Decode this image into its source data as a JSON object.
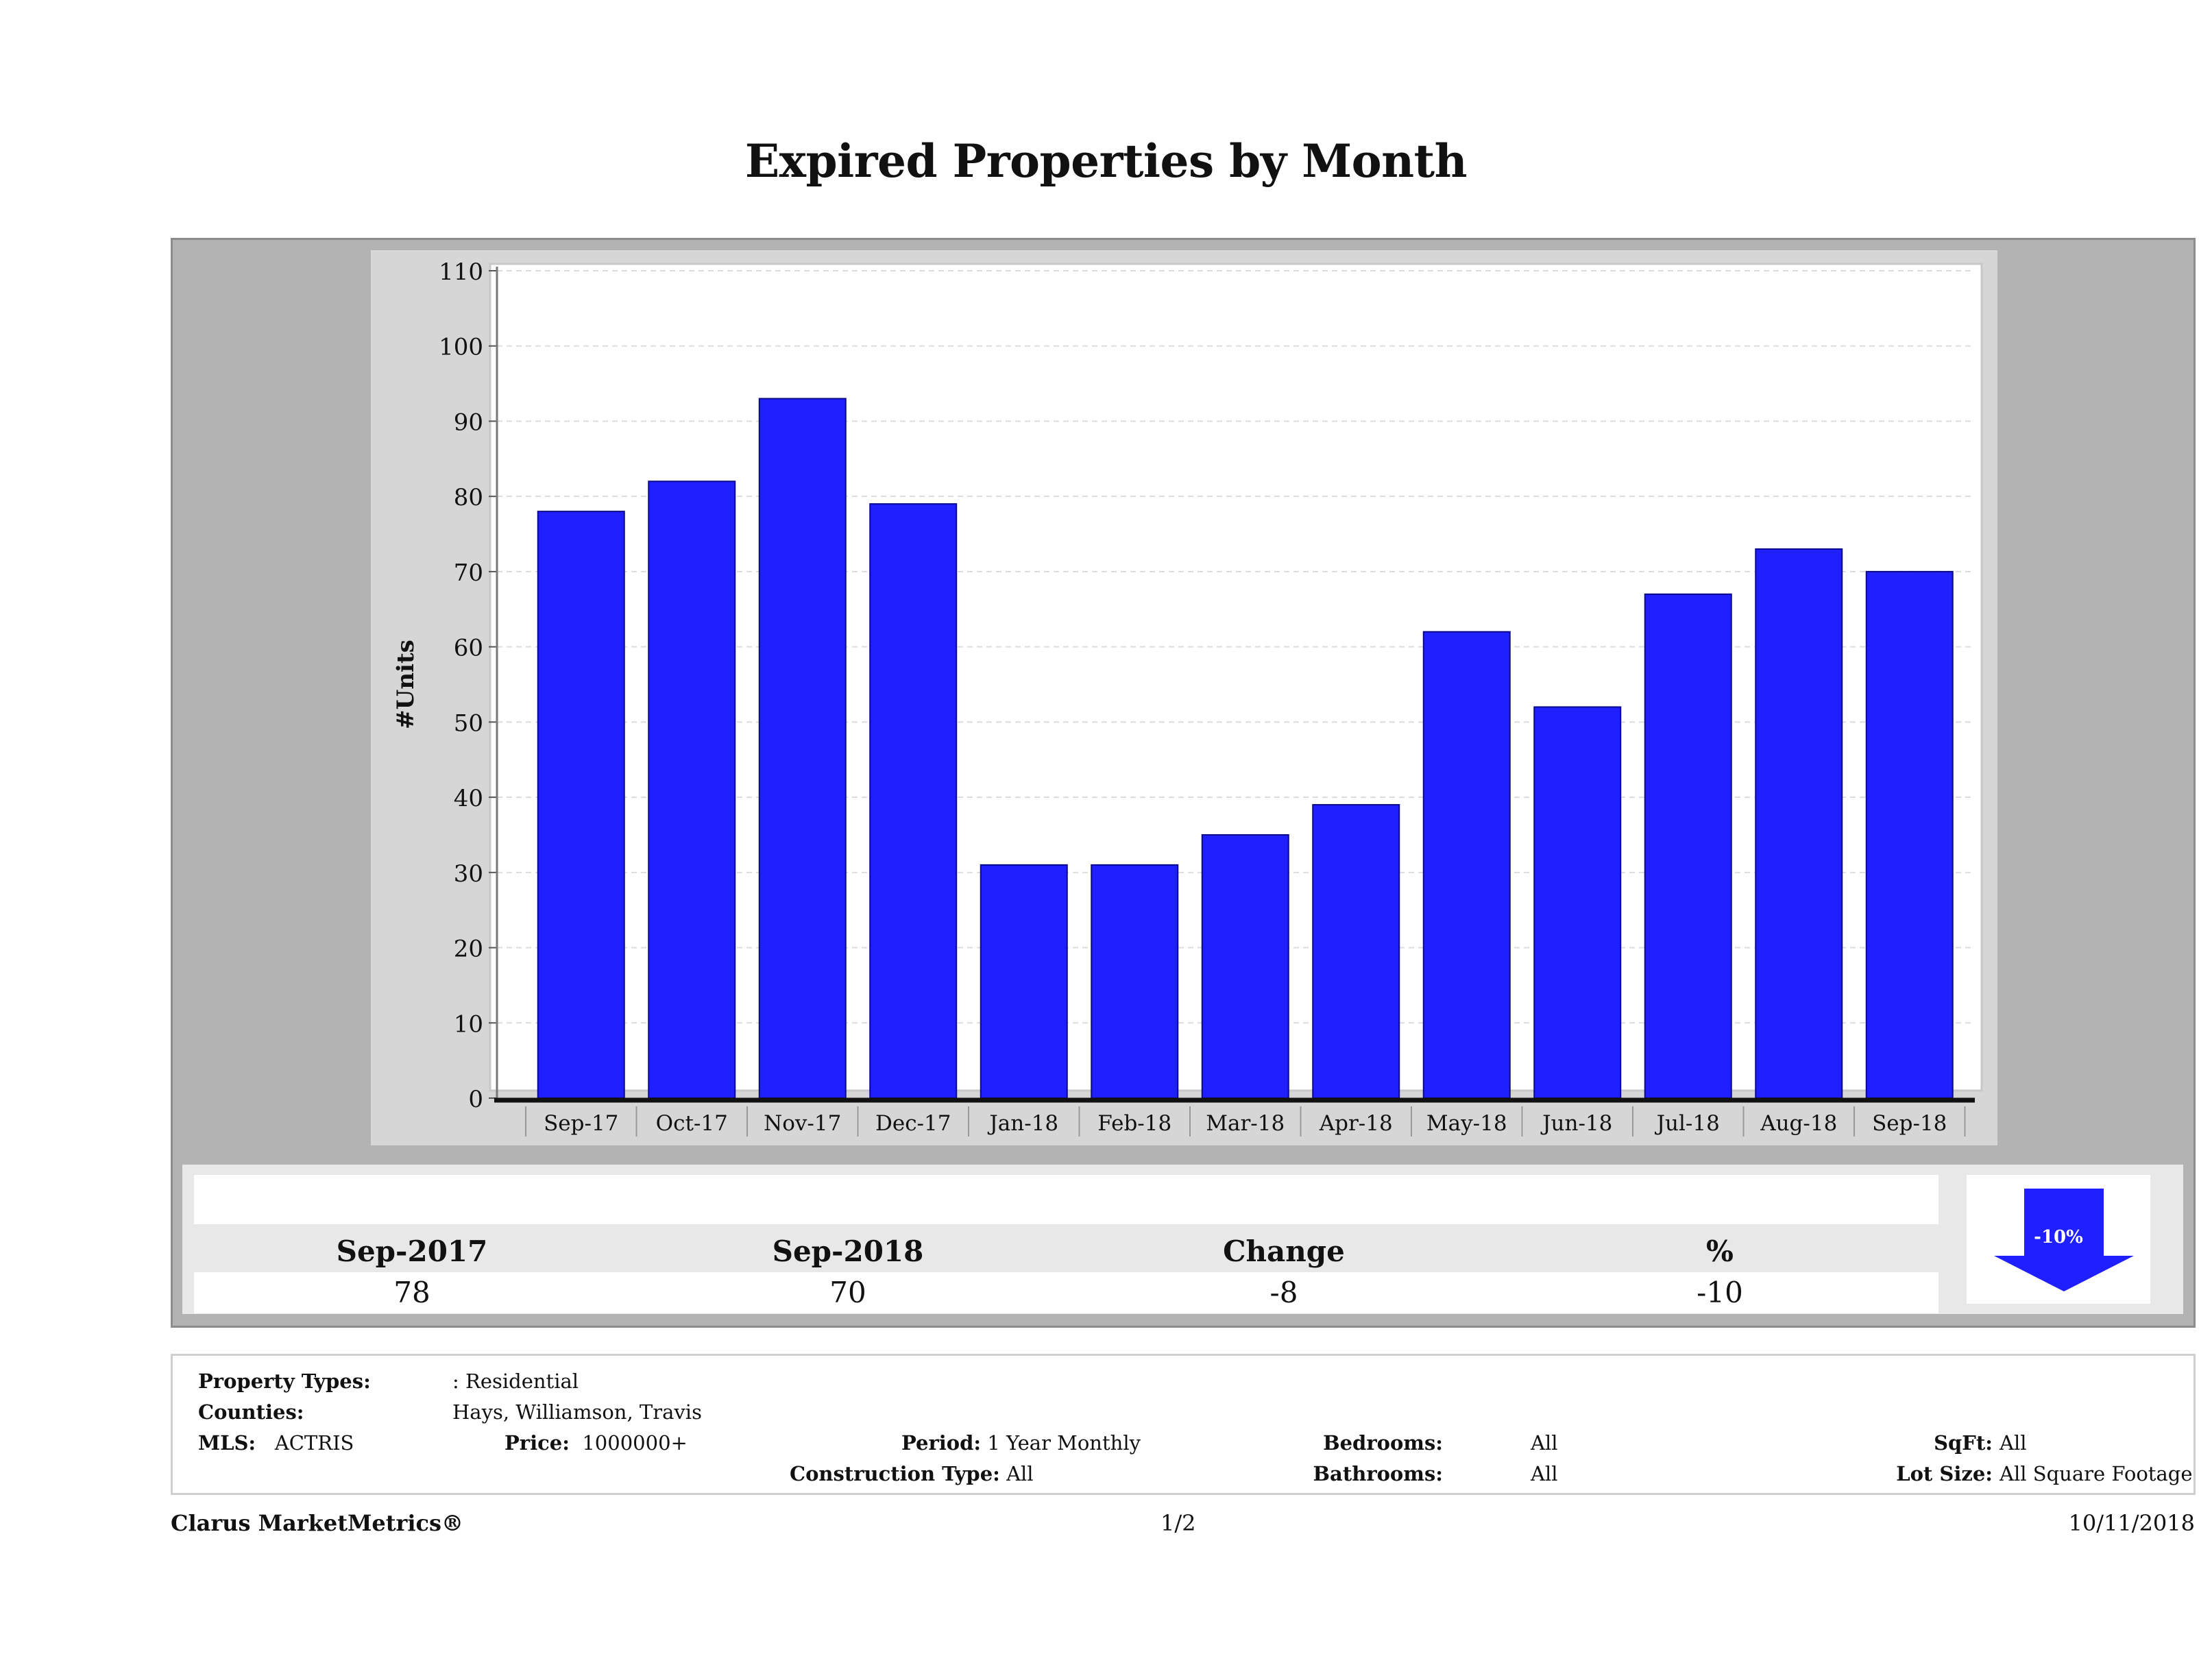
{
  "title": "Expired Properties by Month",
  "chart_data": {
    "type": "bar",
    "title": "Expired Properties by Month",
    "categories": [
      "Sep-17",
      "Oct-17",
      "Nov-17",
      "Dec-17",
      "Jan-18",
      "Feb-18",
      "Mar-18",
      "Apr-18",
      "May-18",
      "Jun-18",
      "Jul-18",
      "Aug-18",
      "Sep-18"
    ],
    "values": [
      78,
      82,
      93,
      79,
      31,
      31,
      35,
      39,
      62,
      52,
      67,
      73,
      70
    ],
    "ylabel": "#Units",
    "xlabel": "",
    "ylim": [
      0,
      110
    ],
    "yticks": [
      0,
      10,
      20,
      30,
      40,
      50,
      60,
      70,
      80,
      90,
      100,
      110
    ],
    "grid": true,
    "bar_color": "#1f1fff"
  },
  "stats": {
    "headers": [
      "Sep-2017",
      "Sep-2018",
      "Change",
      "%"
    ],
    "values": [
      "78",
      "70",
      "-8",
      "-10"
    ],
    "badge": "-10%",
    "arrow_color": "#1f1fff"
  },
  "filters": {
    "property_types_label": "Property Types:",
    "property_types_value": ": Residential",
    "counties_label": "Counties:",
    "counties_value": "Hays, Williamson, Travis",
    "mls_label": "MLS:",
    "mls_value": "ACTRIS",
    "price_label": "Price:",
    "price_value": "1000000+",
    "period_label": "Period:",
    "period_value": "1 Year Monthly",
    "construction_label": "Construction Type:",
    "construction_value": "All",
    "bedrooms_label": "Bedrooms:",
    "bedrooms_value": "All",
    "bathrooms_label": "Bathrooms:",
    "bathrooms_value": "All",
    "sqft_label": "SqFt:",
    "sqft_value": "All",
    "lotsize_label": "Lot Size:",
    "lotsize_value": "All Square Footage"
  },
  "footer": {
    "brand": "Clarus MarketMetrics®",
    "page": "1/2",
    "date": "10/11/2018"
  }
}
